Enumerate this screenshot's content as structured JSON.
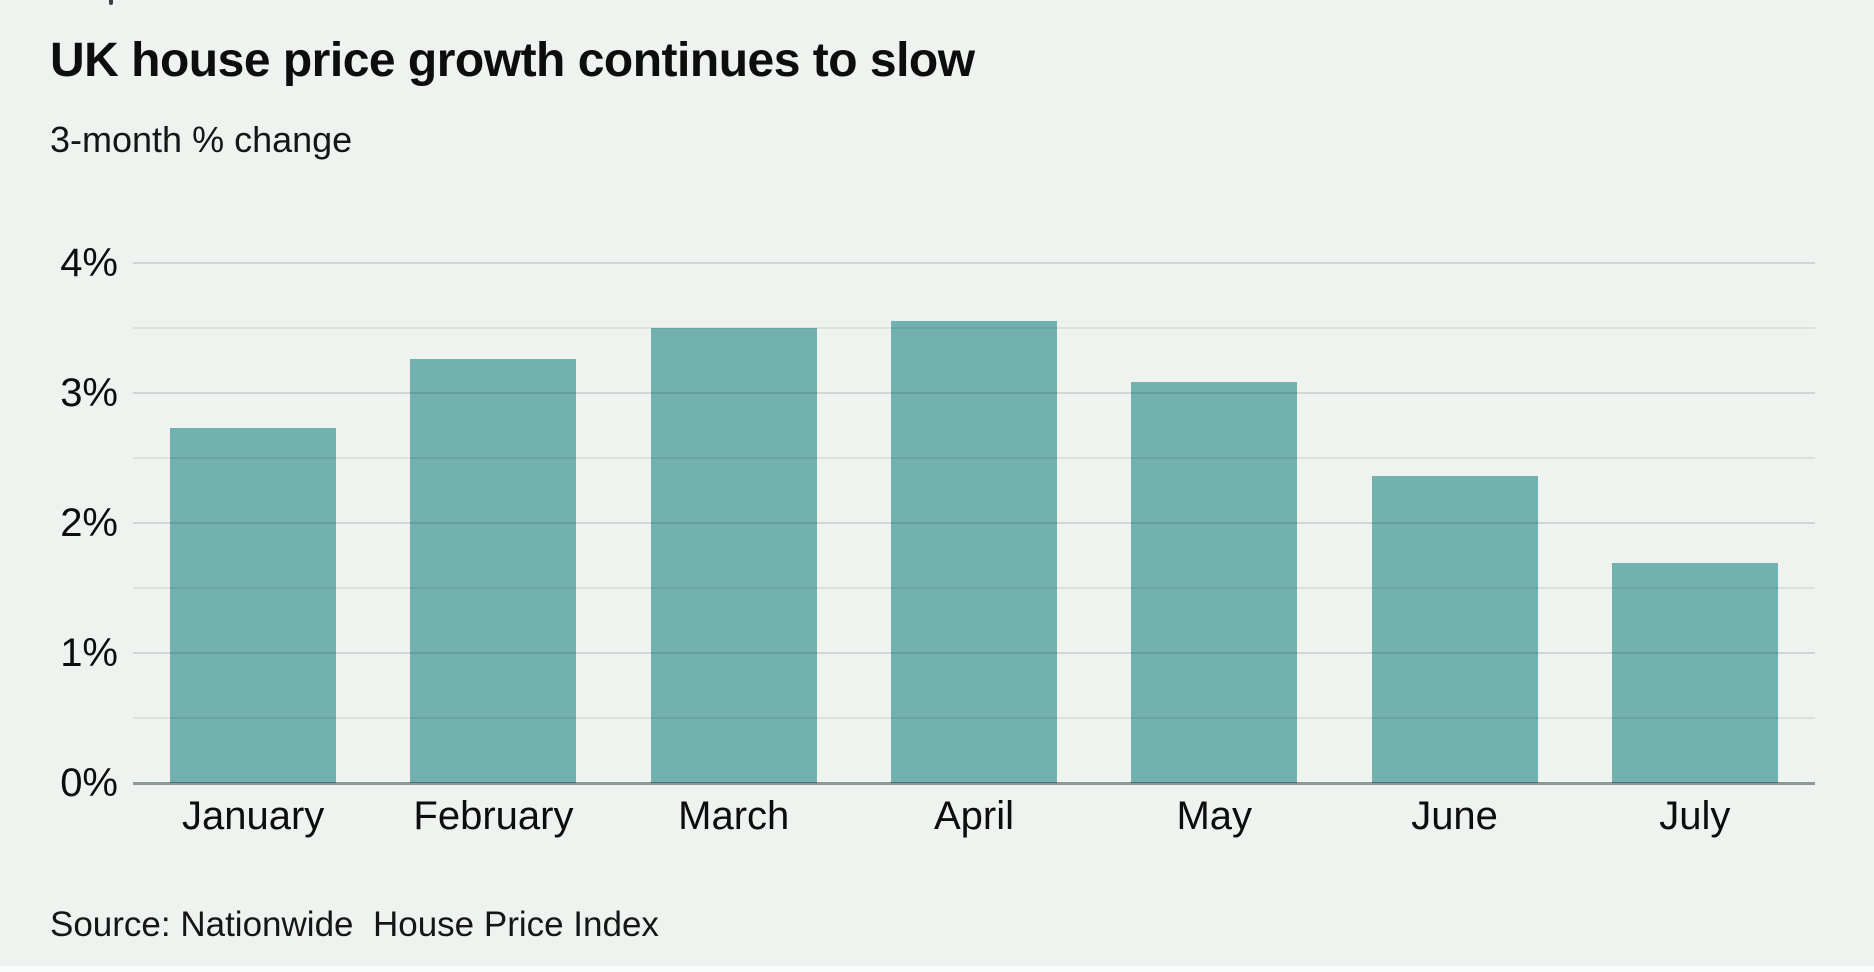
{
  "header": {
    "title": "UK house price growth continues to slow",
    "subtitle": "3-month % change"
  },
  "footer": {
    "source": "Source: Nationwide  House Price Index"
  },
  "colors": {
    "background": "#eef3ef",
    "bar": "#72b1b0",
    "grid_major": "rgba(0,25,25,0.13)",
    "grid_minor": "rgba(0,25,25,0.08)",
    "axis_line": "rgba(8,28,28,0.42)",
    "text": "#0d0d0d"
  },
  "chart_data": {
    "type": "bar",
    "title": "UK house price growth continues to slow",
    "subtitle": "3-month % change",
    "categories": [
      "January",
      "February",
      "March",
      "April",
      "May",
      "June",
      "July"
    ],
    "values": [
      2.73,
      3.26,
      3.5,
      3.55,
      3.08,
      2.36,
      1.69
    ],
    "series_name": "3-month % change",
    "xlabel": "",
    "ylabel": "3-month % change",
    "ylim": [
      0,
      4
    ],
    "yticks": [
      0,
      1,
      2,
      3,
      4
    ],
    "ytick_labels": [
      "0%",
      "1%",
      "2%",
      "3%",
      "4%"
    ],
    "minor_gridlines": [
      0.5,
      1.5,
      2.5,
      3.5
    ],
    "grid": "horizontal",
    "legend": "none",
    "source": "Source: Nationwide  House Price Index"
  }
}
